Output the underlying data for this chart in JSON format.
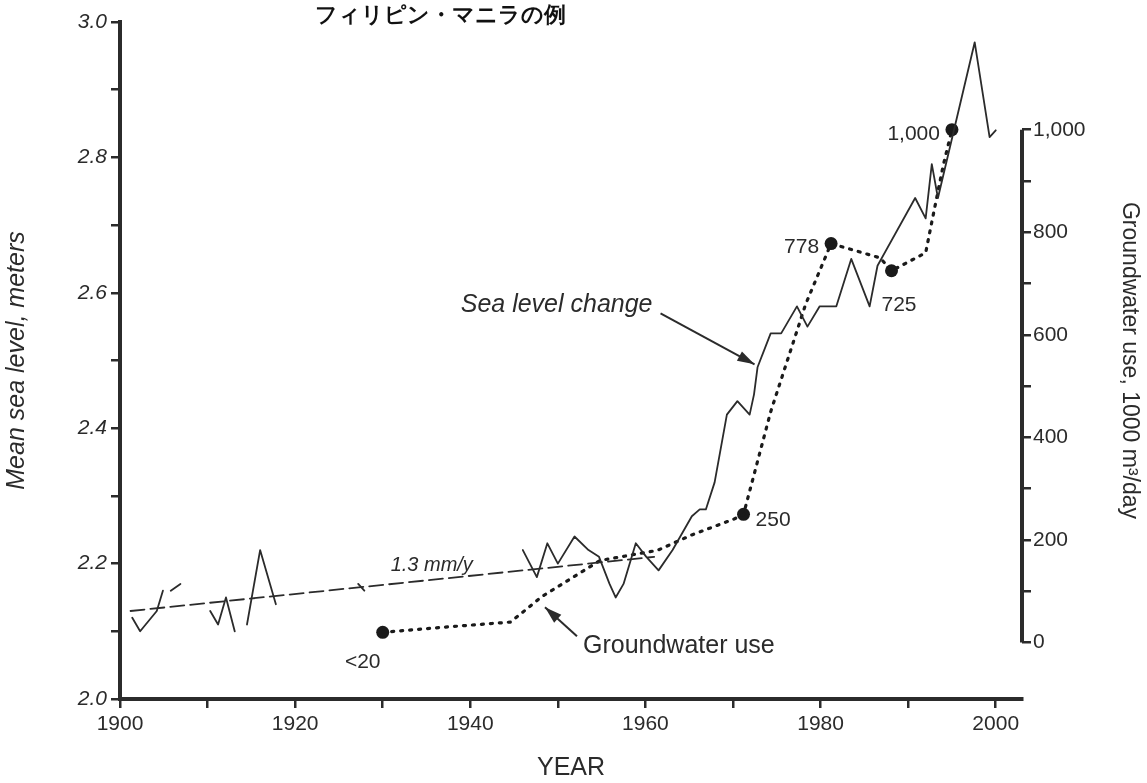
{
  "chart_data": {
    "type": "line",
    "title": "フィリピン・マニラの例",
    "xlabel": "YEAR",
    "ylabel": "Mean sea level, meters",
    "y2label": "Groundwater use, 1000 m³/day",
    "xlim": [
      1900,
      2003
    ],
    "xticks": [
      1900,
      {
        "value": 1910,
        "label": null
      },
      1920,
      {
        "value": 1930,
        "label": null
      },
      1940,
      {
        "value": 1950,
        "label": null
      },
      1960,
      {
        "value": 1970,
        "label": null
      },
      1980,
      {
        "value": 1990,
        "label": null
      },
      2000
    ],
    "ylim": [
      2.0,
      3.0
    ],
    "yticks": [
      {
        "value": 2.0,
        "label": "2.0"
      },
      {
        "value": 2.1,
        "label": null
      },
      2.2,
      {
        "value": 2.3,
        "label": null
      },
      2.4,
      {
        "value": 2.5,
        "label": null
      },
      2.6,
      {
        "value": 2.7,
        "label": null
      },
      2.8,
      {
        "value": 2.9,
        "label": null
      },
      {
        "value": 3.0,
        "label": "3.0"
      }
    ],
    "y2lim": [
      -110,
      1210
    ],
    "y2ticks": [
      0,
      {
        "value": 100,
        "label": null
      },
      200,
      {
        "value": 300,
        "label": null
      },
      400,
      {
        "value": 500,
        "label": null
      },
      600,
      {
        "value": 700,
        "label": null
      },
      800,
      {
        "value": 900,
        "label": null
      },
      {
        "value": 1000,
        "label": "1,000"
      }
    ],
    "grid": false,
    "legend": false,
    "series": [
      {
        "type": "line",
        "color": "#2b2b2b",
        "marker": "none",
        "line_style": "solid",
        "x": [
          1901.4,
          1902.3,
          1904.2,
          1904.9,
          1905.3,
          1905.8,
          1906.9,
          1908,
          1910.3,
          1911.2,
          1912.1,
          1913.1,
          1914,
          1914.5,
          1916.0,
          1917.8,
          1920,
          1927.2,
          1927.9,
          1935,
          1946.0,
          1947.6,
          1948.8,
          1950.0,
          1951.9,
          1953.5,
          1954.7,
          1955.9,
          1956.6,
          1957.5,
          1958.9,
          1960.1,
          1961.5,
          1963.1,
          1965.3,
          1966.2,
          1966.9,
          1967.9,
          1969.3,
          1970.5,
          1971.9,
          1972.4,
          1972.8,
          1974.3,
          1975.5,
          1977.3,
          1978.5,
          1979.9,
          1981.8,
          1983.5,
          1985.6,
          1986.5,
          1990.8,
          1992.0,
          1992.7,
          1993.4,
          1997.6,
          1999.3,
          2000.0
        ],
        "values": [
          2.12,
          2.1,
          2.13,
          2.16,
          null,
          2.16,
          2.17,
          null,
          2.13,
          2.11,
          2.15,
          2.1,
          null,
          2.11,
          2.22,
          2.14,
          null,
          2.17,
          2.16,
          null,
          2.22,
          2.18,
          2.23,
          2.2,
          2.24,
          2.22,
          2.21,
          2.17,
          2.15,
          2.17,
          2.23,
          2.21,
          2.19,
          2.22,
          2.27,
          2.28,
          2.28,
          2.32,
          2.42,
          2.44,
          2.42,
          2.45,
          2.49,
          2.54,
          2.54,
          2.58,
          2.55,
          2.58,
          2.58,
          2.65,
          2.58,
          2.64,
          2.74,
          2.71,
          2.79,
          2.74,
          2.97,
          2.83,
          2.84
        ]
      },
      {
        "type": "line",
        "color": "#2b2b2b",
        "marker": "none",
        "line_style": "dashed",
        "x": [
          1901.2,
          1961
        ],
        "values": [
          2.13,
          2.21
        ]
      },
      {
        "type": "line",
        "axis": "y2",
        "color": "#1a1a1a",
        "marker": "none",
        "line_style": "dotted",
        "x": [
          1930,
          1937,
          1944.6,
          1948.2,
          1954.8,
          1961.4,
          1965.3,
          1970,
          1971.2,
          1974.3,
          1978.3,
          1981.2,
          1986.8,
          1988.1,
          1992,
          1992.7,
          1994,
          1995
        ],
        "values": [
          20,
          30,
          40,
          90,
          160,
          180,
          210,
          240,
          250,
          450,
          660,
          778,
          750,
          725,
          760,
          820,
          930,
          1000
        ]
      },
      {
        "type": "scatter",
        "axis": "y2",
        "color": "#1a1a1a",
        "marker": "circle",
        "x": [
          1930,
          1971.2,
          1981.2,
          1988.1,
          1995
        ],
        "values": [
          20,
          250,
          778,
          725,
          1000
        ],
        "value_labels": [
          "<20",
          "250",
          "778",
          "725",
          "1,000"
        ]
      }
    ],
    "annotations": [
      {
        "text": "Sea level change",
        "x": 1972.8,
        "y": 2.49
      },
      {
        "text": "Groundwater use",
        "x": 1948.3,
        "y": 2.14
      },
      {
        "text": "1.3 mm/y",
        "x": 1935.6,
        "y": 2.18
      }
    ]
  }
}
